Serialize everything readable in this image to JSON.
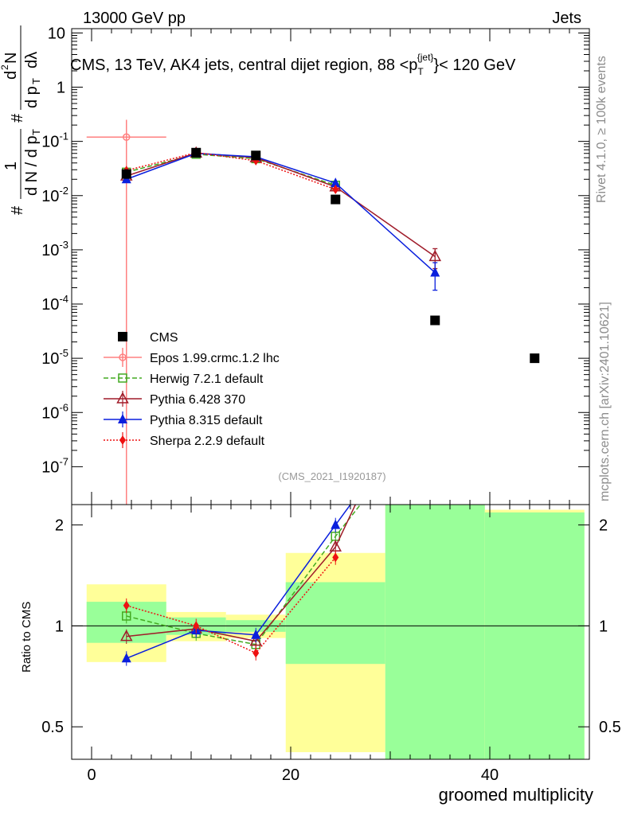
{
  "header": {
    "left": "13000 GeV pp",
    "right": "Jets"
  },
  "side_labels": {
    "rivet": "Rivet 4.1.0, ≥ 100k events",
    "mcplots": "mcplots.cern.ch [arXiv:2401.10621]"
  },
  "watermark": "(CMS_2021_I1920187)",
  "chart_data": {
    "type": "scatter",
    "title": "CMS, 13 TeV, AK4 jets, central dijet region, 88 <p_T^{jet}< 120 GeV",
    "title_parts": {
      "a": "CMS, 13 TeV, AK4 jets, central dijet region, 88 <p",
      "sub": "T",
      "sup": "{jet}",
      "b": "}< 120 GeV"
    },
    "xlabel": "groomed multiplicity",
    "ylabel": "1/N dN/dpT dλ (#) ",
    "ylabel_parts": {
      "num1": "#",
      "one": "1",
      "dN": "d N / d p",
      "T": "T",
      "hash2": "#",
      "d2N": "d",
      "sq": "2",
      "N": "N",
      "dpT": "d p",
      "T2": "T",
      "dl": "dλ"
    },
    "ratio_ylabel": "Ratio to CMS",
    "xlim": [
      -2,
      50
    ],
    "ylim_main": [
      2e-08,
      12
    ],
    "ylim_ratio": [
      0.4,
      2.3
    ],
    "x_ticks": [
      0,
      20,
      40
    ],
    "y_ticks_main": [
      {
        "v": 10,
        "label": "10"
      },
      {
        "v": 1,
        "label": "1"
      },
      {
        "v": 0.1,
        "label": "10",
        "exp": "-1"
      },
      {
        "v": 0.01,
        "label": "10",
        "exp": "-2"
      },
      {
        "v": 0.001,
        "label": "10",
        "exp": "-3"
      },
      {
        "v": 0.0001,
        "label": "10",
        "exp": "-4"
      },
      {
        "v": 1e-05,
        "label": "10",
        "exp": "-5"
      },
      {
        "v": 1e-06,
        "label": "10",
        "exp": "-6"
      },
      {
        "v": 1e-07,
        "label": "10",
        "exp": "-7"
      }
    ],
    "y_ticks_ratio": [
      {
        "v": 2,
        "label": "2"
      },
      {
        "v": 1,
        "label": "1"
      },
      {
        "v": 0.5,
        "label": "0.5"
      }
    ],
    "bins": [
      [
        -0.5,
        7.5
      ],
      [
        7.5,
        13.5
      ],
      [
        13.5,
        19.5
      ],
      [
        19.5,
        29.5
      ],
      [
        29.5,
        39.5
      ],
      [
        39.5,
        49.5
      ]
    ],
    "cms": {
      "name": "CMS",
      "x": [
        3.5,
        10.5,
        16.5,
        24.5,
        34.5,
        44.5
      ],
      "y": [
        0.025,
        0.062,
        0.055,
        0.0085,
        5e-05,
        1e-05
      ]
    },
    "bands": {
      "yellow": [
        [
          0.78,
          1.33
        ],
        [
          0.9,
          1.1
        ],
        [
          0.92,
          1.08
        ],
        [
          0.42,
          1.65
        ],
        [
          0.3,
          2.5
        ],
        [
          0.3,
          2.22
        ]
      ],
      "green": [
        [
          0.89,
          1.18
        ],
        [
          0.94,
          1.06
        ],
        [
          0.96,
          1.04
        ],
        [
          0.77,
          1.35
        ],
        [
          0.3,
          2.5
        ],
        [
          0.3,
          2.18
        ]
      ]
    },
    "series": [
      {
        "name": "Epos 1.99.crmc.1.2 lhc",
        "color": "#ff8080",
        "dash": "",
        "marker": "open-circle",
        "x": [
          3.5
        ],
        "y": [
          0.12
        ],
        "yerr_lo": [
          1e-08
        ],
        "yerr_hi": [
          0.25
        ],
        "xerr": [
          [
            -0.5,
            7.5
          ]
        ],
        "rx": [],
        "ry": []
      },
      {
        "name": "Herwig 7.2.1 default",
        "color": "#44aa22",
        "dash": "6,3",
        "marker": "open-square",
        "x": [
          3.5,
          10.5,
          16.5,
          24.5
        ],
        "y": [
          0.027,
          0.058,
          0.048,
          0.0155
        ],
        "rx": [
          3.5,
          10.5,
          16.5,
          24.5,
          27
        ],
        "ry": [
          1.07,
          0.95,
          0.88,
          1.85,
          2.35
        ]
      },
      {
        "name": "Pythia 6.428 370",
        "color": "#a01c2a",
        "dash": "",
        "marker": "open-triangle",
        "x": [
          3.5,
          10.5,
          16.5,
          24.5,
          34.5
        ],
        "y": [
          0.023,
          0.061,
          0.05,
          0.0145,
          0.00075
        ],
        "yerr": [
          0,
          0,
          0,
          0,
          0.0003
        ],
        "rx": [
          3.5,
          10.5,
          16.5,
          24.5,
          26.5
        ],
        "ry": [
          0.93,
          0.98,
          0.9,
          1.72,
          2.3
        ]
      },
      {
        "name": "Pythia 8.315 default",
        "color": "#0a1fdd",
        "dash": "",
        "marker": "filled-triangle",
        "x": [
          3.5,
          10.5,
          16.5,
          24.5,
          34.5
        ],
        "y": [
          0.02,
          0.06,
          0.052,
          0.017,
          0.00038
        ],
        "yerr": [
          0,
          0,
          0,
          0,
          0.0002
        ],
        "rx": [
          3.5,
          10.5,
          16.5,
          24.5,
          26.0
        ],
        "ry": [
          0.8,
          0.97,
          0.94,
          2.0,
          2.3
        ],
        "ryerr": [
          0.07,
          0.04,
          0.05,
          0.1,
          0
        ]
      },
      {
        "name": "Sherpa 2.2.9 default",
        "color": "#ee1111",
        "dash": "2,2",
        "marker": "filled-diamond",
        "x": [
          3.5,
          10.5,
          16.5,
          24.5
        ],
        "y": [
          0.029,
          0.062,
          0.044,
          0.013
        ],
        "rx": [
          3.5,
          10.5,
          16.5,
          24.5
        ],
        "ry": [
          1.15,
          1.0,
          0.83,
          1.6
        ]
      }
    ],
    "legend_placement": "center-left"
  }
}
